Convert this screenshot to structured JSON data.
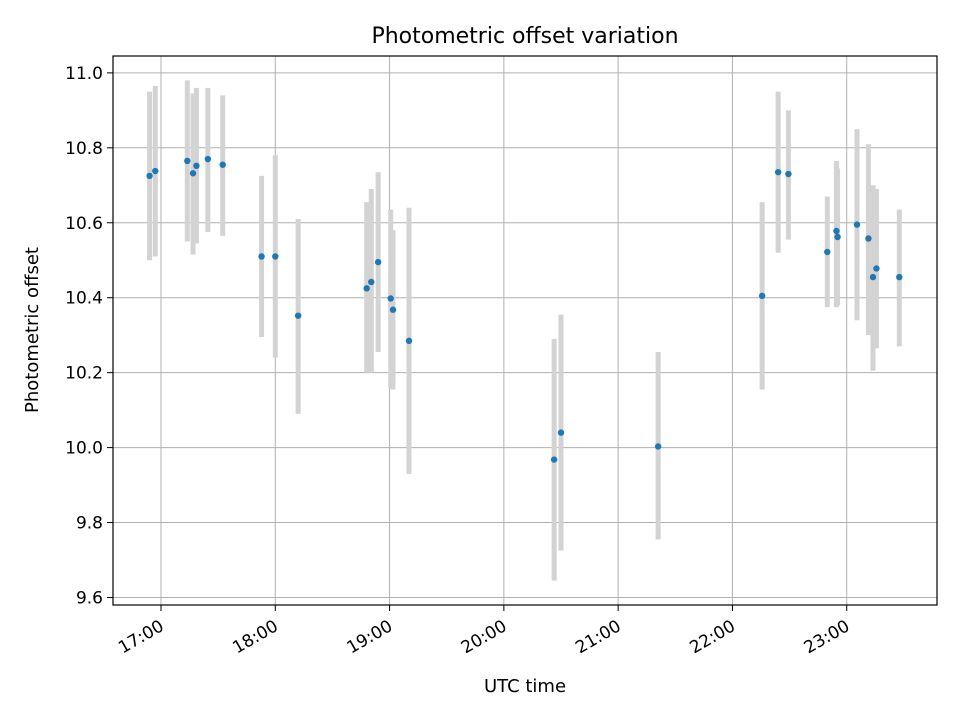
{
  "chart_data": {
    "type": "scatter",
    "title": "Photometric offset variation",
    "xlabel": "UTC time",
    "ylabel": "Photometric offset",
    "xlim": [
      16.58,
      23.79
    ],
    "ylim": [
      9.58,
      11.045
    ],
    "grid": true,
    "x_ticks": [
      17,
      18,
      19,
      20,
      21,
      22,
      23
    ],
    "x_tick_labels": [
      "17:00",
      "18:00",
      "19:00",
      "20:00",
      "21:00",
      "22:00",
      "23:00"
    ],
    "y_ticks": [
      9.6,
      9.8,
      10.0,
      10.2,
      10.4,
      10.6,
      10.8,
      11.0
    ],
    "y_tick_labels": [
      "9.6",
      "9.8",
      "10.0",
      "10.2",
      "10.4",
      "10.6",
      "10.8",
      "11.0"
    ],
    "colors": {
      "point": "#1f77b4",
      "errorbar": "#d3d3d3",
      "grid": "#b0b0b0",
      "axes": "#000000"
    },
    "series": [
      {
        "name": "offset",
        "x": [
          16.9,
          16.95,
          17.23,
          17.28,
          17.31,
          17.41,
          17.54,
          17.88,
          18.0,
          18.2,
          18.8,
          18.84,
          18.9,
          19.01,
          19.03,
          19.17,
          20.44,
          20.5,
          21.35,
          22.26,
          22.4,
          22.49,
          22.83,
          22.91,
          22.92,
          23.09,
          23.19,
          23.23,
          23.26,
          23.46
        ],
        "y": [
          10.725,
          10.738,
          10.765,
          10.732,
          10.752,
          10.77,
          10.755,
          10.51,
          10.51,
          10.352,
          10.425,
          10.442,
          10.495,
          10.398,
          10.368,
          10.285,
          9.968,
          10.04,
          10.003,
          10.405,
          10.735,
          10.73,
          10.522,
          10.578,
          10.562,
          10.595,
          10.558,
          10.455,
          10.478,
          10.455
        ],
        "err_low": [
          10.5,
          10.51,
          10.55,
          10.515,
          10.545,
          10.575,
          10.565,
          10.295,
          10.24,
          10.09,
          10.2,
          10.2,
          10.255,
          10.16,
          10.155,
          9.93,
          9.645,
          9.725,
          9.755,
          10.155,
          10.52,
          10.555,
          10.375,
          10.375,
          10.38,
          10.34,
          10.3,
          10.205,
          10.265,
          10.27
        ],
        "err_high": [
          10.95,
          10.965,
          10.98,
          10.945,
          10.96,
          10.96,
          10.94,
          10.725,
          10.78,
          10.61,
          10.655,
          10.69,
          10.735,
          10.635,
          10.58,
          10.64,
          10.29,
          10.355,
          10.255,
          10.655,
          10.95,
          10.9,
          10.67,
          10.765,
          10.745,
          10.85,
          10.81,
          10.7,
          10.69,
          10.635
        ]
      }
    ]
  }
}
